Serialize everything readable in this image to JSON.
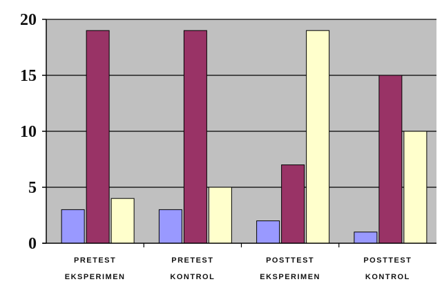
{
  "chart_data": {
    "type": "bar",
    "title": "",
    "xlabel": "",
    "ylabel": "",
    "categories": [
      [
        "PRETEST",
        "EKSPERIMEN"
      ],
      [
        "PRETEST",
        "KONTROL"
      ],
      [
        "POSTTEST",
        "EKSPERIMEN"
      ],
      [
        "POSTTEST",
        "KONTROL"
      ]
    ],
    "series": [
      {
        "values": [
          3,
          3,
          2,
          1
        ],
        "color": "#9999ff"
      },
      {
        "values": [
          19,
          19,
          7,
          15
        ],
        "color": "#993366"
      },
      {
        "values": [
          4,
          5,
          19,
          10
        ],
        "color": "#ffffcc"
      }
    ],
    "ylim": [
      0,
      20
    ],
    "yticks": [
      0,
      5,
      10,
      15,
      20
    ],
    "grid": true,
    "plot_background": "#c0c0c0",
    "legend": "none"
  }
}
